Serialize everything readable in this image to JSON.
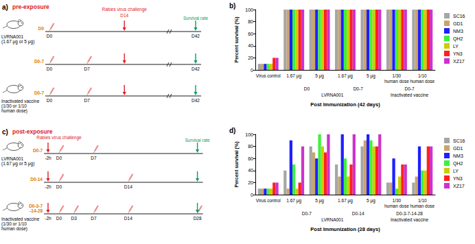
{
  "chart_data": [
    {
      "type": "bar",
      "title": "b)",
      "x_label": "Post Immunization (42 days)",
      "y_label": "Percent survival (%)",
      "categories": [
        "Virus control",
        "1.67 μg",
        "5 μg",
        "1.67 μg",
        "5 μg",
        "1/30\nhuman dose",
        "1/10\nhuman dose"
      ],
      "group_rows": [
        [
          {
            "text": "D0",
            "span": [
              1,
              2
            ]
          },
          {
            "text": "D0-7",
            "span": [
              3,
              4
            ]
          },
          {
            "text": "D0-7",
            "span": [
              5,
              6
            ]
          }
        ],
        [
          {
            "text": "LVRNA001",
            "span": [
              1,
              4
            ]
          },
          {
            "text": "Inactivated vaccine",
            "span": [
              5,
              6
            ]
          }
        ]
      ],
      "series": [
        {
          "name": "SC16",
          "color": "#a6a6a6",
          "values": [
            10,
            100,
            100,
            100,
            100,
            100,
            100
          ]
        },
        {
          "name": "GD1",
          "color": "#c9a46c",
          "values": [
            10,
            100,
            100,
            100,
            100,
            100,
            100
          ]
        },
        {
          "name": "NM3",
          "color": "#1f1fff",
          "values": [
            10,
            100,
            100,
            100,
            100,
            100,
            100
          ]
        },
        {
          "name": "QH2",
          "color": "#3ef03e",
          "values": [
            10,
            100,
            100,
            100,
            100,
            100,
            100
          ]
        },
        {
          "name": "LY",
          "color": "#cccc00",
          "values": [
            10,
            100,
            100,
            100,
            100,
            100,
            100
          ]
        },
        {
          "name": "YN3",
          "color": "#ff2020",
          "values": [
            20,
            100,
            100,
            100,
            100,
            100,
            100
          ]
        },
        {
          "name": "XZ17",
          "color": "#cc33cc",
          "values": [
            20,
            100,
            100,
            100,
            100,
            100,
            100
          ]
        }
      ],
      "ylim": [
        0,
        100
      ],
      "yticks": [
        0,
        20,
        40,
        60,
        80,
        100
      ],
      "grid": false,
      "legend": "upper right"
    },
    {
      "type": "bar",
      "title": "d)",
      "x_label": "Post Immunization (28 days)",
      "y_label": "Percent survival (%)",
      "categories": [
        "Virus control",
        "1.67 μg",
        "5 μg",
        "1.67 μg",
        "5 μg",
        "1/30\nhuman dose",
        "1/10\nhuman dose"
      ],
      "group_rows": [
        [
          {
            "text": "D0-7",
            "span": [
              1,
              2
            ]
          },
          {
            "text": "D0-14",
            "span": [
              3,
              4
            ]
          },
          {
            "text": "D0-3-7-14-28",
            "span": [
              5,
              6
            ]
          }
        ],
        [
          {
            "text": "LVRNA001",
            "span": [
              1,
              4
            ]
          },
          {
            "text": "Inactivated vaccine",
            "span": [
              5,
              6
            ]
          }
        ]
      ],
      "series": [
        {
          "name": "SC16",
          "color": "#a6a6a6",
          "values": [
            10,
            40,
            80,
            50,
            80,
            20,
            20
          ]
        },
        {
          "name": "GD1",
          "color": "#c9a46c",
          "values": [
            10,
            10,
            70,
            30,
            90,
            20,
            30
          ]
        },
        {
          "name": "NM3",
          "color": "#1f1fff",
          "values": [
            10,
            90,
            60,
            100,
            100,
            60,
            80
          ]
        },
        {
          "name": "QH2",
          "color": "#3ef03e",
          "values": [
            10,
            50,
            100,
            60,
            90,
            10,
            40
          ]
        },
        {
          "name": "LY",
          "color": "#cccc00",
          "values": [
            10,
            10,
            80,
            30,
            80,
            30,
            40
          ]
        },
        {
          "name": "YN3",
          "color": "#ff2020",
          "values": [
            20,
            20,
            70,
            50,
            80,
            50,
            80
          ]
        },
        {
          "name": "XZ17",
          "color": "#cc33cc",
          "values": [
            20,
            80,
            100,
            100,
            100,
            50,
            80
          ]
        }
      ],
      "ylim": [
        0,
        100
      ],
      "yticks": [
        0,
        20,
        40,
        60,
        80,
        100
      ],
      "grid": false,
      "legend": "upper right"
    }
  ],
  "diagrams": [
    {
      "panel": "a)",
      "title": "pre-exposure",
      "challenge": {
        "label": "Rabies virus challenge",
        "day": 14,
        "day_label": "D14"
      },
      "outcome": {
        "label": "Survival rate",
        "day": 42
      },
      "rows": [
        {
          "subject": [
            "LVRNA001",
            "(1.67 μg or 5 μg)"
          ],
          "schedule": "D0",
          "doses": [
            0
          ],
          "ticks": [
            {
              "day": 0,
              "label": "D0"
            },
            {
              "day": 42,
              "label": "D42"
            }
          ]
        },
        {
          "schedule": "D0-7",
          "doses": [
            0,
            7
          ],
          "ticks": [
            {
              "day": 0,
              "label": "D0"
            },
            {
              "day": 7,
              "label": "D7"
            },
            {
              "day": 42,
              "label": "D42"
            }
          ]
        },
        {
          "subject": [
            "Inactivated vaccine",
            "(1/30 or 1/10",
            "human dose)"
          ],
          "schedule": "D0-7",
          "doses": [
            0,
            7
          ],
          "ticks": [
            {
              "day": 0,
              "label": "D0"
            },
            {
              "day": 7,
              "label": "D7"
            },
            {
              "day": 42,
              "label": "D42"
            }
          ]
        }
      ]
    },
    {
      "panel": "c)",
      "title": "post-exposure",
      "challenge": {
        "label": "Rabies virus challenge",
        "day": -0.083
      },
      "outcome": {
        "label": "Survival rate",
        "day": 28
      },
      "rows": [
        {
          "subject": [
            "LVRNA001",
            "(1.67 μg or 5 μg)"
          ],
          "schedule": "D0-7",
          "doses": [
            0,
            7
          ],
          "ticks": [
            {
              "day": -0.083,
              "label": "-2h"
            },
            {
              "day": 0,
              "label": "D0"
            },
            {
              "day": 7,
              "label": "D7"
            }
          ]
        },
        {
          "schedule": "D0-14",
          "doses": [
            0,
            14
          ],
          "ticks": [
            {
              "day": -0.083,
              "label": "-2h"
            },
            {
              "day": 0,
              "label": "D0"
            },
            {
              "day": 14,
              "label": "D14"
            }
          ]
        },
        {
          "subject": [
            "Inactivated vaccine",
            "(1/30 or 1/10",
            "human dose)"
          ],
          "schedule": "D0-3-7\n-14-28",
          "doses": [
            0,
            3,
            7,
            14,
            28
          ],
          "ticks": [
            {
              "day": -0.083,
              "label": "-2h"
            },
            {
              "day": 0,
              "label": "D0"
            },
            {
              "day": 3,
              "label": "D3"
            },
            {
              "day": 7,
              "label": "D7"
            },
            {
              "day": 14,
              "label": "D14"
            },
            {
              "day": 28,
              "label": "D28"
            }
          ]
        }
      ]
    }
  ]
}
